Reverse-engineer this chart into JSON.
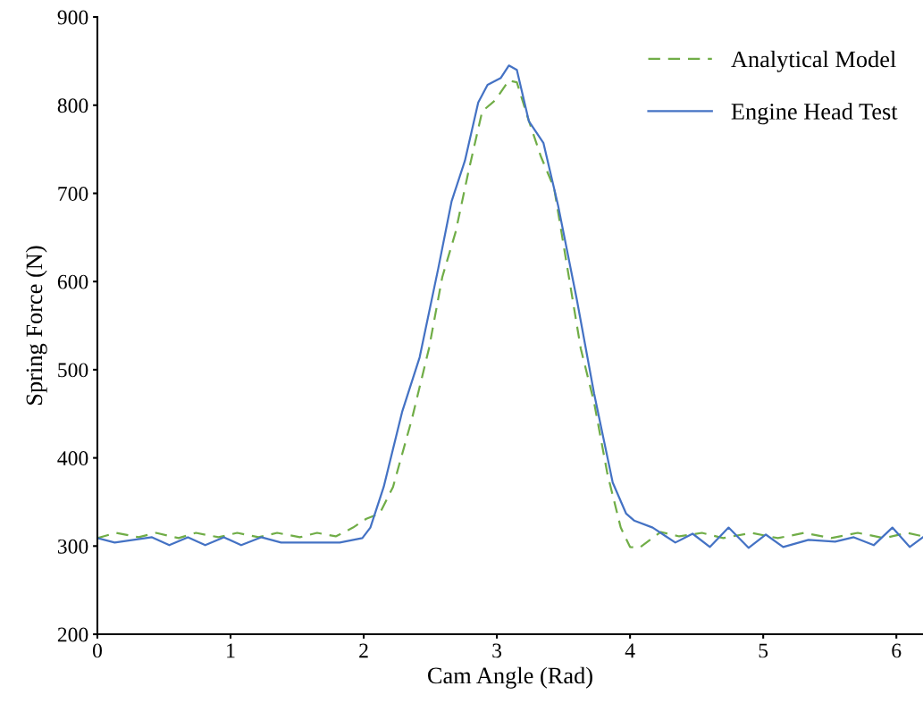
{
  "chart_data": {
    "type": "line",
    "xlabel": "Cam Angle (Rad)",
    "ylabel": "Spring Force (N)",
    "xlim": [
      0,
      6.2
    ],
    "xticks": [
      0,
      1,
      2,
      3,
      4,
      5,
      6
    ],
    "ylim": [
      200,
      900
    ],
    "yticks": [
      200,
      300,
      400,
      500,
      600,
      700,
      800,
      900
    ],
    "grid": false,
    "legend": "top right",
    "series": [
      {
        "name": "Analytical Model",
        "color": "#70ad47",
        "line_style": "dashed",
        "x": [
          0,
          0.14,
          0.31,
          0.44,
          0.61,
          0.74,
          0.91,
          1.05,
          1.21,
          1.35,
          1.52,
          1.65,
          1.79,
          1.92,
          2.02,
          2.12,
          2.22,
          2.36,
          2.49,
          2.59,
          2.69,
          2.79,
          2.89,
          2.99,
          3.09,
          3.15,
          3.23,
          3.33,
          3.43,
          3.53,
          3.63,
          3.73,
          3.83,
          3.93,
          4.0,
          4.07,
          4.23,
          4.37,
          4.54,
          4.7,
          4.91,
          5.11,
          5.31,
          5.51,
          5.71,
          5.91,
          6.08,
          6.2
        ],
        "values": [
          309,
          315,
          310,
          315,
          309,
          315,
          310,
          315,
          310,
          315,
          310,
          315,
          311,
          321,
          331,
          337,
          367,
          443,
          524,
          605,
          656,
          727,
          793,
          806,
          828,
          826,
          787,
          742,
          706,
          615,
          524,
          463,
          382,
          321,
          299,
          298,
          316,
          311,
          315,
          309,
          315,
          309,
          315,
          309,
          315,
          309,
          315,
          311
        ]
      },
      {
        "name": "Engine Head Test",
        "color": "#4472c4",
        "line_style": "solid",
        "x": [
          0,
          0.13,
          0.41,
          0.54,
          0.68,
          0.81,
          0.95,
          1.08,
          1.23,
          1.38,
          1.82,
          1.99,
          2.05,
          2.15,
          2.29,
          2.42,
          2.56,
          2.66,
          2.76,
          2.86,
          2.93,
          3.03,
          3.09,
          3.15,
          3.24,
          3.35,
          3.46,
          3.6,
          3.73,
          3.87,
          3.97,
          4.03,
          4.17,
          4.27,
          4.34,
          4.47,
          4.6,
          4.74,
          4.89,
          5.02,
          5.15,
          5.34,
          5.54,
          5.68,
          5.83,
          5.97,
          6.1,
          6.2
        ],
        "values": [
          309,
          304,
          310,
          301,
          310,
          301,
          310,
          301,
          310,
          304,
          304,
          309,
          321,
          367,
          453,
          514,
          615,
          691,
          737,
          803,
          823,
          831,
          845,
          840,
          782,
          757,
          686,
          580,
          473,
          372,
          337,
          329,
          321,
          311,
          304,
          314,
          299,
          321,
          298,
          313,
          299,
          307,
          305,
          310,
          301,
          321,
          299,
          310
        ]
      }
    ]
  }
}
